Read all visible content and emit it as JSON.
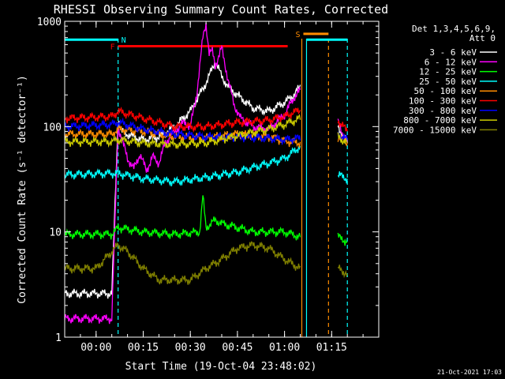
{
  "chart_data": {
    "type": "line",
    "title": "RHESSI Observing Summary Count Rates, Corrected",
    "xlabel": "Start Time (19-Oct-04 23:48:02)",
    "ylabel": "Corrected Count Rate (s⁻¹ detector⁻¹)",
    "yscale": "log",
    "ylim": [
      1,
      1000
    ],
    "y_ticks": [
      "1",
      "10",
      "100",
      "1000"
    ],
    "xlim_minutes": [
      -10,
      90
    ],
    "x_ticks": [
      {
        "label": "00:00",
        "min": 0
      },
      {
        "label": "00:15",
        "min": 15
      },
      {
        "label": "00:30",
        "min": 30
      },
      {
        "label": "00:45",
        "min": 45
      },
      {
        "label": "01:00",
        "min": 60
      },
      {
        "label": "01:15",
        "min": 75
      }
    ],
    "legend_title": [
      "Det 1,3,4,5,6,9,",
      "Att 0"
    ],
    "footer": "21-Oct-2021 17:03",
    "flags": [
      {
        "label": "N",
        "color": "#00ffff",
        "y": 670,
        "segments": [
          [
            -10,
            7
          ],
          [
            67,
            80
          ]
        ]
      },
      {
        "label": "F",
        "color": "#ff0000",
        "y": 580,
        "segments": [
          [
            7,
            61
          ]
        ]
      },
      {
        "label": "S",
        "color": "#ff8c00",
        "y": 760,
        "segments": [
          [
            66,
            74
          ]
        ]
      }
    ],
    "markers": [
      {
        "color": "#00ffff",
        "style": "dashed",
        "x": 7
      },
      {
        "color": "#00ffff",
        "style": "solid",
        "x": 67
      },
      {
        "color": "#ff8c00",
        "style": "solid",
        "x": 65.5
      },
      {
        "color": "#ff8c00",
        "style": "dashed",
        "x": 74
      },
      {
        "color": "#00ffff",
        "style": "dashed",
        "x": 80
      }
    ],
    "series": [
      {
        "name": "3 - 6 keV",
        "color": "#ffffff",
        "x": [
          -10,
          5,
          7,
          8,
          12,
          15,
          20,
          25,
          30,
          35,
          38,
          40,
          42,
          45,
          50,
          55,
          60,
          63,
          65,
          77,
          80
        ],
        "y": [
          2.6,
          2.6,
          120,
          90,
          80,
          75,
          80,
          100,
          140,
          260,
          420,
          300,
          240,
          200,
          150,
          140,
          170,
          200,
          240,
          100,
          70
        ]
      },
      {
        "name": "6 - 12 keV",
        "color": "#ff00ff",
        "x": [
          -10,
          5,
          7,
          8,
          10,
          12,
          14,
          16,
          18,
          20,
          22,
          25,
          28,
          30,
          32,
          34,
          35,
          36,
          37,
          38,
          40,
          42,
          44,
          46,
          50,
          55,
          60,
          63,
          65,
          77,
          80
        ],
        "y": [
          1.5,
          1.5,
          100,
          80,
          50,
          40,
          55,
          38,
          52,
          45,
          70,
          90,
          110,
          100,
          200,
          700,
          950,
          500,
          520,
          380,
          560,
          280,
          160,
          120,
          100,
          95,
          130,
          190,
          220,
          110,
          70
        ]
      },
      {
        "name": "12 - 25 keV",
        "color": "#00ff00",
        "x": [
          -10,
          5,
          7,
          15,
          25,
          33,
          34,
          35,
          38,
          40,
          45,
          50,
          55,
          60,
          65,
          77,
          80
        ],
        "y": [
          9.5,
          9.5,
          11,
          10,
          9.5,
          10,
          22,
          11,
          13,
          12,
          11,
          10,
          10,
          10,
          9,
          9,
          8
        ]
      },
      {
        "name": "25 - 50 keV",
        "color": "#00ffff",
        "x": [
          -10,
          5,
          7,
          15,
          25,
          35,
          45,
          55,
          60,
          65,
          77,
          80
        ],
        "y": [
          35,
          36,
          36,
          32,
          30,
          33,
          37,
          45,
          50,
          65,
          35,
          32
        ]
      },
      {
        "name": "50 - 100 keV",
        "color": "#ff8c00",
        "x": [
          -10,
          5,
          7,
          15,
          25,
          35,
          45,
          55,
          60,
          65,
          77,
          80
        ],
        "y": [
          85,
          85,
          95,
          90,
          80,
          78,
          85,
          80,
          73,
          70,
          80,
          70
        ]
      },
      {
        "name": "100 - 300 keV",
        "color": "#ff0000",
        "x": [
          -10,
          5,
          7,
          15,
          25,
          35,
          45,
          55,
          60,
          65,
          77,
          80
        ],
        "y": [
          120,
          125,
          140,
          120,
          100,
          100,
          110,
          115,
          125,
          145,
          115,
          90
        ]
      },
      {
        "name": "300 - 800 keV",
        "color": "#0000ff",
        "x": [
          -10,
          5,
          7,
          15,
          25,
          35,
          45,
          55,
          60,
          65,
          77,
          80
        ],
        "y": [
          100,
          105,
          110,
          95,
          85,
          80,
          80,
          78,
          75,
          78,
          85,
          75
        ]
      },
      {
        "name": "800 - 7000 keV",
        "color": "#cccc00",
        "x": [
          -10,
          5,
          7,
          15,
          25,
          35,
          45,
          55,
          60,
          65,
          77,
          80
        ],
        "y": [
          72,
          72,
          75,
          70,
          68,
          70,
          82,
          95,
          105,
          120,
          80,
          70
        ]
      },
      {
        "name": "7000 - 15000 keV",
        "color": "#808000",
        "x": [
          -10,
          0,
          5,
          7,
          10,
          15,
          20,
          25,
          30,
          35,
          40,
          45,
          50,
          55,
          60,
          65,
          77,
          80
        ],
        "y": [
          4.5,
          4.5,
          6.5,
          7.5,
          6.5,
          4.5,
          3.5,
          3.5,
          3.5,
          4.5,
          5.5,
          7,
          7.5,
          7,
          5.5,
          4.5,
          4.5,
          4
        ]
      }
    ]
  }
}
